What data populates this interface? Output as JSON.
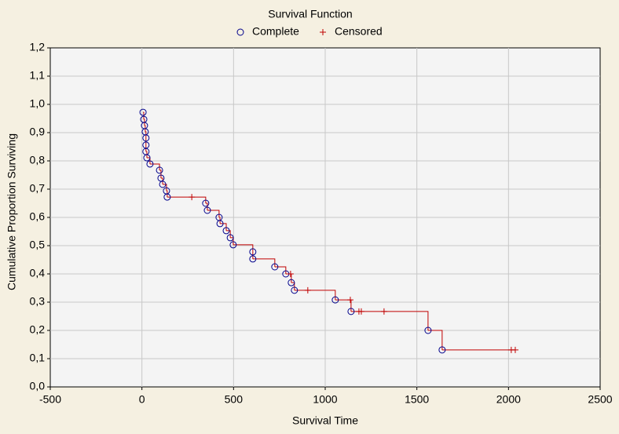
{
  "chart_data": {
    "type": "survival",
    "title": "Survival Function",
    "x_label": "Survival Time",
    "y_label": "Cumulative Proportion Surviving",
    "xlim": [
      -500,
      2500
    ],
    "xticks": [
      -500,
      0,
      500,
      1000,
      1500,
      2000,
      2500
    ],
    "ylim": [
      0,
      1.2
    ],
    "yticks": [
      {
        "value": 0,
        "label": "0,0"
      },
      {
        "value": 0.1,
        "label": "0,1"
      },
      {
        "value": 0.2,
        "label": "0,2"
      },
      {
        "value": 0.3,
        "label": "0,3"
      },
      {
        "value": 0.4,
        "label": "0,4"
      },
      {
        "value": 0.5,
        "label": "0,5"
      },
      {
        "value": 0.6,
        "label": "0,6"
      },
      {
        "value": 0.7,
        "label": "0,7"
      },
      {
        "value": 0.8,
        "label": "0,8"
      },
      {
        "value": 0.9,
        "label": "0,9"
      },
      {
        "value": 1.0,
        "label": "1,0"
      },
      {
        "value": 1.1,
        "label": "1,1"
      },
      {
        "value": 1.2,
        "label": "1,2"
      }
    ],
    "grid": true,
    "line_color": "#c00000",
    "series": [
      {
        "name": "Complete",
        "color": "#00008b",
        "x": [
          6,
          10,
          14,
          18,
          22,
          22,
          22,
          27,
          44,
          96,
          104,
          113,
          134,
          138,
          348,
          357,
          421,
          426,
          460,
          482,
          498,
          605,
          605,
          725,
          785,
          815,
          832,
          1055,
          1141,
          1561,
          1638
        ],
        "values": [
          0.972,
          0.947,
          0.925,
          0.903,
          0.881,
          0.856,
          0.833,
          0.811,
          0.789,
          0.767,
          0.739,
          0.717,
          0.694,
          0.672,
          0.65,
          0.625,
          0.6,
          0.578,
          0.553,
          0.528,
          0.503,
          0.478,
          0.453,
          0.425,
          0.4,
          0.369,
          0.342,
          0.308,
          0.267,
          0.2,
          0.131
        ]
      },
      {
        "name": "Censored",
        "color": "#c00000",
        "x": [
          272,
          811,
          905,
          1137,
          1184,
          1197,
          1321,
          2015,
          2037
        ],
        "values": [
          0.672,
          0.4,
          0.342,
          0.308,
          0.267,
          0.267,
          0.267,
          0.131,
          0.131
        ]
      }
    ]
  }
}
